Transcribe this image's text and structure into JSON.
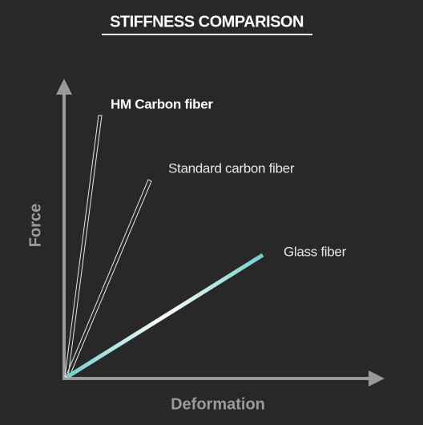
{
  "title": "STIFFNESS COMPARISON",
  "axes": {
    "x_label": "Deformation",
    "y_label": "Force"
  },
  "materials": [
    {
      "label": "HM Carbon fiber"
    },
    {
      "label": "Standard carbon fiber"
    },
    {
      "label": "Glass fiber"
    }
  ]
}
